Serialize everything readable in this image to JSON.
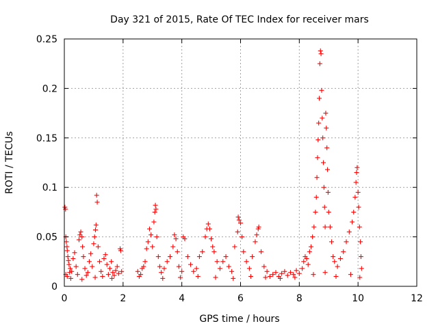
{
  "colors": {
    "series": "#ff0000",
    "grid": "#a0a0a0",
    "axis": "#000000",
    "background": "#ffffff"
  },
  "chart_data": {
    "type": "scatter",
    "title": "Day 321 of 2015, Rate Of TEC Index for receiver mars",
    "xlabel": "GPS time / hours",
    "ylabel": "ROTI / TECUs",
    "xlim": [
      0,
      12
    ],
    "ylim": [
      0,
      0.25
    ],
    "xticks": [
      0,
      2,
      4,
      6,
      8,
      10,
      12
    ],
    "xtick_labels": [
      "0",
      "2",
      "4",
      "6",
      "8",
      "10",
      "12"
    ],
    "yticks": [
      0,
      0.05,
      0.1,
      0.15,
      0.2,
      0.25
    ],
    "ytick_labels": [
      "0",
      "0.05",
      "0.1",
      "0.15",
      "0.2",
      "0.25"
    ],
    "grid": true,
    "marker": "plus",
    "series": [
      {
        "name": "ROTI",
        "points": [
          [
            0.02,
            0.08
          ],
          [
            0.04,
            0.078
          ],
          [
            0.05,
            0.05
          ],
          [
            0.07,
            0.045
          ],
          [
            0.09,
            0.04
          ],
          [
            0.1,
            0.036
          ],
          [
            0.12,
            0.03
          ],
          [
            0.14,
            0.026
          ],
          [
            0.16,
            0.022
          ],
          [
            0.2,
            0.018
          ],
          [
            0.25,
            0.015
          ],
          [
            0.05,
            0.012
          ],
          [
            0.1,
            0.01
          ],
          [
            0.18,
            0.014
          ],
          [
            0.3,
            0.028
          ],
          [
            0.35,
            0.034
          ],
          [
            0.4,
            0.02
          ],
          [
            0.45,
            0.012
          ],
          [
            0.5,
            0.047
          ],
          [
            0.53,
            0.052
          ],
          [
            0.56,
            0.055
          ],
          [
            0.6,
            0.05
          ],
          [
            0.62,
            0.04
          ],
          [
            0.65,
            0.03
          ],
          [
            0.7,
            0.018
          ],
          [
            0.75,
            0.011
          ],
          [
            0.8,
            0.014
          ],
          [
            0.85,
            0.025
          ],
          [
            0.9,
            0.033
          ],
          [
            0.95,
            0.02
          ],
          [
            1.0,
            0.043
          ],
          [
            1.03,
            0.05
          ],
          [
            1.06,
            0.057
          ],
          [
            1.08,
            0.062
          ],
          [
            1.1,
            0.092
          ],
          [
            1.12,
            0.085
          ],
          [
            1.15,
            0.04
          ],
          [
            1.2,
            0.025
          ],
          [
            1.25,
            0.015
          ],
          [
            1.3,
            0.01
          ],
          [
            1.35,
            0.028
          ],
          [
            1.4,
            0.032
          ],
          [
            1.45,
            0.022
          ],
          [
            1.5,
            0.012
          ],
          [
            1.55,
            0.018
          ],
          [
            1.6,
            0.025
          ],
          [
            1.65,
            0.014
          ],
          [
            1.7,
            0.011
          ],
          [
            1.75,
            0.016
          ],
          [
            1.8,
            0.02
          ],
          [
            1.85,
            0.013
          ],
          [
            1.9,
            0.038
          ],
          [
            1.92,
            0.036
          ],
          [
            1.95,
            0.015
          ],
          [
            0.22,
            0.008
          ],
          [
            0.6,
            0.007
          ],
          [
            1.05,
            0.009
          ],
          [
            1.62,
            0.008
          ],
          [
            2.5,
            0.015
          ],
          [
            2.55,
            0.01
          ],
          [
            2.6,
            0.012
          ],
          [
            2.65,
            0.018
          ],
          [
            2.7,
            0.02
          ],
          [
            2.75,
            0.025
          ],
          [
            2.8,
            0.038
          ],
          [
            2.85,
            0.045
          ],
          [
            2.9,
            0.058
          ],
          [
            2.95,
            0.052
          ],
          [
            3.0,
            0.04
          ],
          [
            3.05,
            0.065
          ],
          [
            3.08,
            0.075
          ],
          [
            3.1,
            0.082
          ],
          [
            3.12,
            0.078
          ],
          [
            3.15,
            0.05
          ],
          [
            3.2,
            0.03
          ],
          [
            3.25,
            0.02
          ],
          [
            3.3,
            0.014
          ],
          [
            3.4,
            0.018
          ],
          [
            3.5,
            0.025
          ],
          [
            3.6,
            0.03
          ],
          [
            3.7,
            0.04
          ],
          [
            3.75,
            0.052
          ],
          [
            3.8,
            0.048
          ],
          [
            3.85,
            0.035
          ],
          [
            3.9,
            0.02
          ],
          [
            4.0,
            0.015
          ],
          [
            4.05,
            0.05
          ],
          [
            4.1,
            0.048
          ],
          [
            4.2,
            0.03
          ],
          [
            4.3,
            0.022
          ],
          [
            4.4,
            0.015
          ],
          [
            4.5,
            0.018
          ],
          [
            4.6,
            0.03
          ],
          [
            4.7,
            0.035
          ],
          [
            4.8,
            0.05
          ],
          [
            4.85,
            0.058
          ],
          [
            4.9,
            0.063
          ],
          [
            4.95,
            0.058
          ],
          [
            5.0,
            0.048
          ],
          [
            5.05,
            0.04
          ],
          [
            5.1,
            0.035
          ],
          [
            5.2,
            0.025
          ],
          [
            5.3,
            0.018
          ],
          [
            5.4,
            0.025
          ],
          [
            5.5,
            0.03
          ],
          [
            5.6,
            0.02
          ],
          [
            5.7,
            0.015
          ],
          [
            5.8,
            0.04
          ],
          [
            5.9,
            0.055
          ],
          [
            5.92,
            0.07
          ],
          [
            5.95,
            0.067
          ],
          [
            6.0,
            0.064
          ],
          [
            6.05,
            0.05
          ],
          [
            6.1,
            0.035
          ],
          [
            6.2,
            0.025
          ],
          [
            6.3,
            0.018
          ],
          [
            6.4,
            0.03
          ],
          [
            6.5,
            0.045
          ],
          [
            6.55,
            0.052
          ],
          [
            6.6,
            0.058
          ],
          [
            6.62,
            0.06
          ],
          [
            6.7,
            0.035
          ],
          [
            6.8,
            0.02
          ],
          [
            6.9,
            0.015
          ],
          [
            3.35,
            0.008
          ],
          [
            3.95,
            0.009
          ],
          [
            4.55,
            0.01
          ],
          [
            5.15,
            0.009
          ],
          [
            5.75,
            0.008
          ],
          [
            6.35,
            0.01
          ],
          [
            6.85,
            0.009
          ],
          [
            7.0,
            0.01
          ],
          [
            7.1,
            0.012
          ],
          [
            7.2,
            0.014
          ],
          [
            7.3,
            0.01
          ],
          [
            7.4,
            0.013
          ],
          [
            7.5,
            0.015
          ],
          [
            7.6,
            0.011
          ],
          [
            7.7,
            0.014
          ],
          [
            7.8,
            0.012
          ],
          [
            7.9,
            0.016
          ],
          [
            8.0,
            0.013
          ],
          [
            8.1,
            0.018
          ],
          [
            8.15,
            0.025
          ],
          [
            8.2,
            0.03
          ],
          [
            8.25,
            0.028
          ],
          [
            8.3,
            0.022
          ],
          [
            8.35,
            0.035
          ],
          [
            8.4,
            0.04
          ],
          [
            8.45,
            0.05
          ],
          [
            8.5,
            0.06
          ],
          [
            8.55,
            0.075
          ],
          [
            8.58,
            0.09
          ],
          [
            8.6,
            0.11
          ],
          [
            8.62,
            0.13
          ],
          [
            8.64,
            0.148
          ],
          [
            8.66,
            0.165
          ],
          [
            8.68,
            0.19
          ],
          [
            8.7,
            0.225
          ],
          [
            8.72,
            0.238
          ],
          [
            8.74,
            0.235
          ],
          [
            8.76,
            0.198
          ],
          [
            8.78,
            0.17
          ],
          [
            8.8,
            0.15
          ],
          [
            8.82,
            0.125
          ],
          [
            8.84,
            0.1
          ],
          [
            8.86,
            0.08
          ],
          [
            8.88,
            0.06
          ],
          [
            8.9,
            0.175
          ],
          [
            8.92,
            0.16
          ],
          [
            8.94,
            0.14
          ],
          [
            8.96,
            0.118
          ],
          [
            8.98,
            0.095
          ],
          [
            9.0,
            0.075
          ],
          [
            9.05,
            0.06
          ],
          [
            9.1,
            0.045
          ],
          [
            9.15,
            0.03
          ],
          [
            9.2,
            0.025
          ],
          [
            9.3,
            0.02
          ],
          [
            9.4,
            0.028
          ],
          [
            9.5,
            0.035
          ],
          [
            9.6,
            0.045
          ],
          [
            9.7,
            0.055
          ],
          [
            9.8,
            0.065
          ],
          [
            9.85,
            0.075
          ],
          [
            9.9,
            0.09
          ],
          [
            9.93,
            0.105
          ],
          [
            9.95,
            0.115
          ],
          [
            9.97,
            0.12
          ],
          [
            10.0,
            0.095
          ],
          [
            10.02,
            0.08
          ],
          [
            10.05,
            0.06
          ],
          [
            10.08,
            0.045
          ],
          [
            10.1,
            0.03
          ],
          [
            10.12,
            0.018
          ],
          [
            8.48,
            0.012
          ],
          [
            8.88,
            0.014
          ],
          [
            9.25,
            0.01
          ],
          [
            9.75,
            0.012
          ],
          [
            10.06,
            0.009
          ],
          [
            7.35,
            0.008
          ],
          [
            7.85,
            0.009
          ]
        ]
      }
    ]
  }
}
